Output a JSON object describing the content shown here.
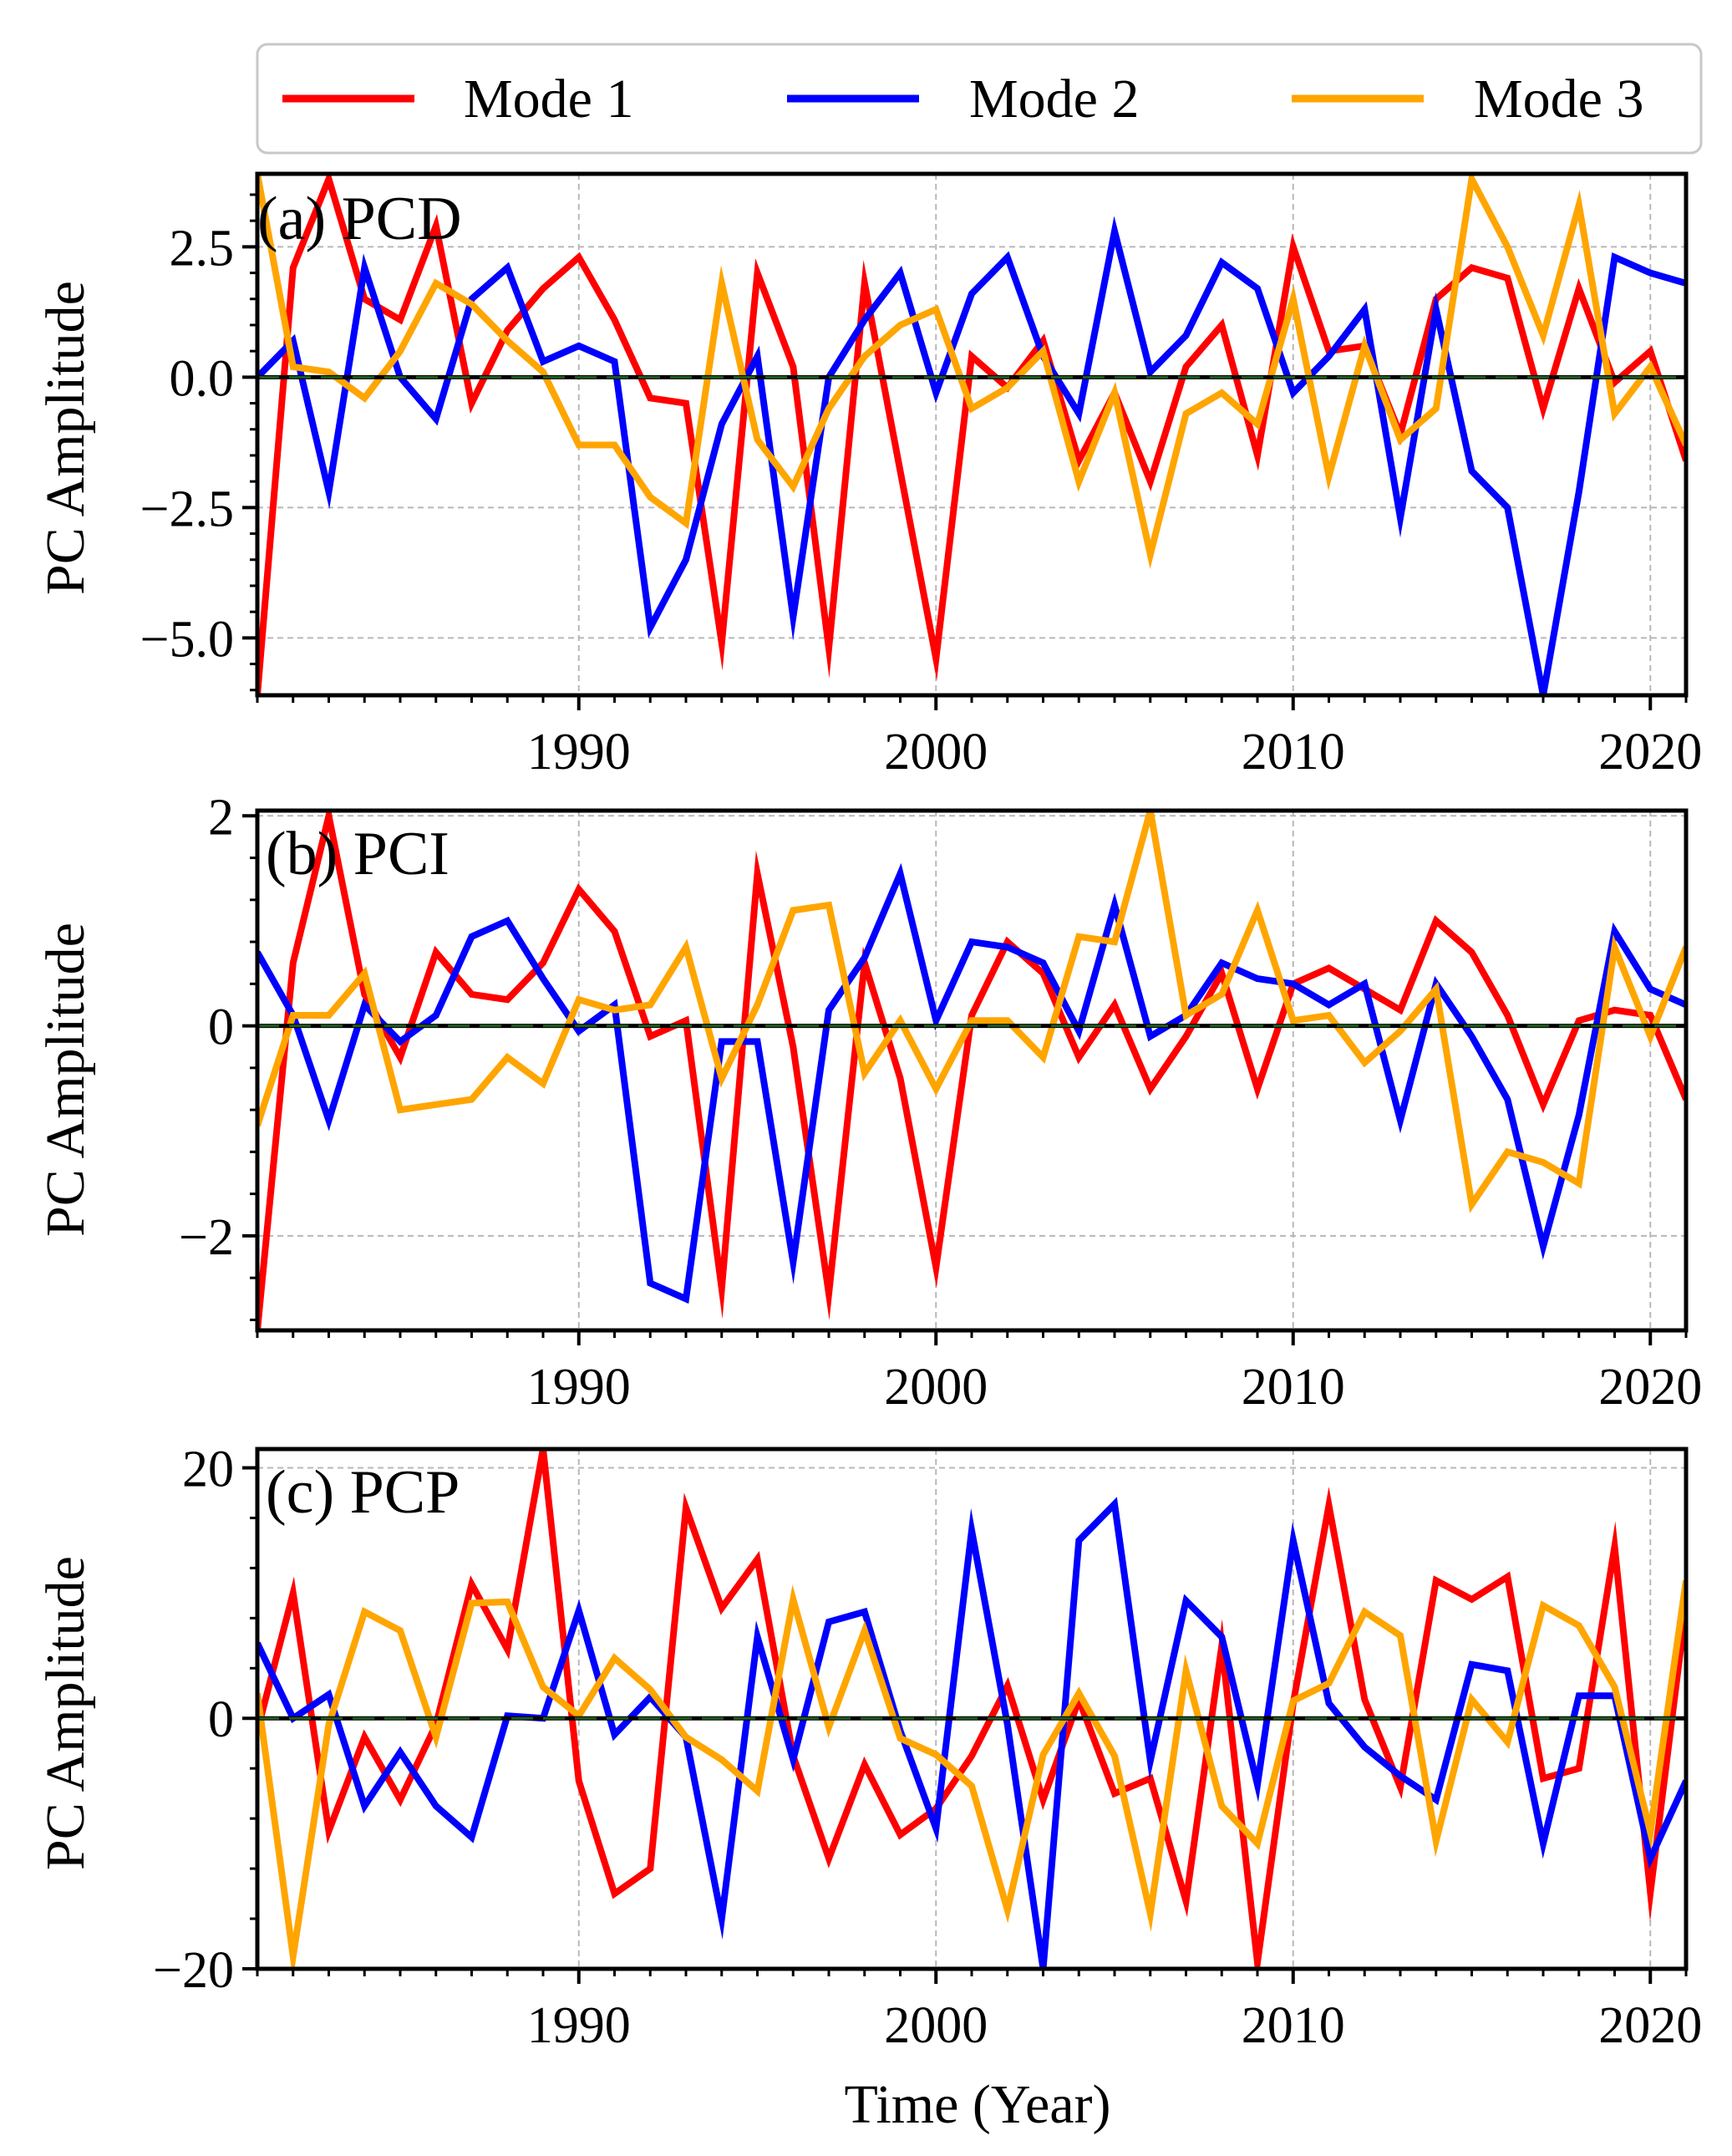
{
  "legend": [
    {
      "name": "Mode 1",
      "color": "#ff0000"
    },
    {
      "name": "Mode 2",
      "color": "#0000ff"
    },
    {
      "name": "Mode 3",
      "color": "#ffa500"
    }
  ],
  "zero_line_color": "#1f5a1f",
  "xlabel": "Time (Year)",
  "ylabel": "PC Amplitude",
  "chart_data": [
    {
      "type": "line",
      "title": "(a) PCD",
      "xlabel": "",
      "ylabel": "PC Amplitude",
      "xlim": [
        1981,
        2021
      ],
      "ylim": [
        -6.1,
        3.9
      ],
      "xticks": [
        1990,
        2000,
        2010,
        2020
      ],
      "yticks": [
        -5.0,
        -2.5,
        0.0,
        2.5
      ],
      "ytick_labels": [
        "−5.0",
        "−2.5",
        "0.0",
        "2.5"
      ],
      "grid": true,
      "legend": "top",
      "x": [
        1981,
        1982,
        1983,
        1984,
        1985,
        1986,
        1987,
        1988,
        1989,
        1990,
        1991,
        1992,
        1993,
        1994,
        1995,
        1996,
        1997,
        1998,
        1999,
        2000,
        2001,
        2002,
        2003,
        2004,
        2005,
        2006,
        2007,
        2008,
        2009,
        2010,
        2011,
        2012,
        2013,
        2014,
        2015,
        2016,
        2017,
        2018,
        2019,
        2020,
        2021
      ],
      "series": [
        {
          "name": "Mode 1",
          "values": [
            -6.1,
            2.1,
            3.8,
            1.5,
            1.1,
            2.9,
            -0.5,
            0.9,
            1.7,
            2.3,
            1.1,
            -0.4,
            -0.5,
            -5.1,
            2.0,
            0.2,
            -5.2,
            1.8,
            -1.8,
            -5.4,
            0.4,
            -0.2,
            0.7,
            -1.6,
            -0.3,
            -2.0,
            0.2,
            1.0,
            -1.5,
            2.5,
            0.5,
            0.6,
            -1.1,
            1.5,
            2.1,
            1.9,
            -0.6,
            1.7,
            -0.1,
            0.5,
            -1.6
          ]
        },
        {
          "name": "Mode 2",
          "values": [
            0.0,
            0.7,
            -2.2,
            2.1,
            0.0,
            -0.8,
            1.5,
            2.1,
            0.3,
            0.6,
            0.3,
            -4.8,
            -3.5,
            -0.9,
            0.4,
            -4.6,
            0.0,
            1.1,
            2.0,
            -0.3,
            1.6,
            2.3,
            0.4,
            -0.7,
            2.8,
            0.1,
            0.8,
            2.2,
            1.7,
            -0.3,
            0.4,
            1.3,
            -2.7,
            1.3,
            -1.8,
            -2.5,
            -6.1,
            -2.2,
            2.3,
            2.0,
            1.8
          ]
        },
        {
          "name": "Mode 3",
          "values": [
            3.9,
            0.2,
            0.1,
            -0.4,
            0.5,
            1.8,
            1.4,
            0.7,
            0.1,
            -1.3,
            -1.3,
            -2.3,
            -2.8,
            1.8,
            -1.2,
            -2.1,
            -0.6,
            0.4,
            1.0,
            1.3,
            -0.6,
            -0.2,
            0.5,
            -2.0,
            -0.3,
            -3.4,
            -0.7,
            -0.3,
            -0.9,
            1.5,
            -1.9,
            0.6,
            -1.2,
            -0.6,
            3.8,
            2.5,
            0.8,
            3.3,
            -0.7,
            0.2,
            -1.3
          ]
        }
      ]
    },
    {
      "type": "line",
      "title": "(b) PCI",
      "xlabel": "",
      "ylabel": "PC Amplitude",
      "xlim": [
        1981,
        2021
      ],
      "ylim": [
        -2.9,
        2.05
      ],
      "xticks": [
        1990,
        2000,
        2010,
        2020
      ],
      "yticks": [
        -2,
        0,
        2
      ],
      "ytick_labels": [
        "−2",
        "0",
        "2"
      ],
      "grid": true,
      "x": [
        1981,
        1982,
        1983,
        1984,
        1985,
        1986,
        1987,
        1988,
        1989,
        1990,
        1991,
        1992,
        1993,
        1994,
        1995,
        1996,
        1997,
        1998,
        1999,
        2000,
        2001,
        2002,
        2003,
        2004,
        2005,
        2006,
        2007,
        2008,
        2009,
        2010,
        2011,
        2012,
        2013,
        2014,
        2015,
        2016,
        2017,
        2018,
        2019,
        2020,
        2021
      ],
      "series": [
        {
          "name": "Mode 1",
          "values": [
            -2.9,
            0.6,
            2.0,
            0.3,
            -0.3,
            0.7,
            0.3,
            0.25,
            0.6,
            1.3,
            0.9,
            -0.1,
            0.05,
            -2.5,
            1.45,
            -0.2,
            -2.55,
            0.6,
            -0.5,
            -2.3,
            0.1,
            0.8,
            0.5,
            -0.3,
            0.2,
            -0.6,
            -0.1,
            0.5,
            -0.6,
            0.4,
            0.55,
            0.35,
            0.15,
            1.0,
            0.7,
            0.1,
            -0.75,
            0.05,
            0.15,
            0.1,
            -0.7
          ]
        },
        {
          "name": "Mode 2",
          "values": [
            0.7,
            0.1,
            -0.9,
            0.2,
            -0.15,
            0.1,
            0.85,
            1.0,
            0.45,
            -0.05,
            0.2,
            -2.45,
            -2.6,
            -0.15,
            -0.15,
            -2.25,
            0.15,
            0.65,
            1.45,
            0.05,
            0.8,
            0.75,
            0.6,
            -0.05,
            1.15,
            -0.1,
            0.1,
            0.6,
            0.45,
            0.4,
            0.2,
            0.4,
            -0.9,
            0.4,
            -0.1,
            -0.7,
            -2.1,
            -0.85,
            0.9,
            0.35,
            0.2
          ]
        },
        {
          "name": "Mode 3",
          "values": [
            -0.95,
            0.1,
            0.1,
            0.5,
            -0.8,
            -0.75,
            -0.7,
            -0.3,
            -0.55,
            0.25,
            0.15,
            0.2,
            0.75,
            -0.5,
            0.2,
            1.1,
            1.15,
            -0.45,
            0.05,
            -0.6,
            0.05,
            0.05,
            -0.3,
            0.85,
            0.8,
            2.05,
            0.1,
            0.3,
            1.1,
            0.05,
            0.1,
            -0.35,
            -0.05,
            0.35,
            -1.7,
            -1.2,
            -1.3,
            -1.5,
            0.75,
            -0.1,
            0.75
          ]
        }
      ]
    },
    {
      "type": "line",
      "title": "(c) PCP",
      "xlabel": "Time (Year)",
      "ylabel": "PC Amplitude",
      "xlim": [
        1981,
        2021
      ],
      "ylim": [
        -20,
        21.5
      ],
      "xticks": [
        1990,
        2000,
        2010,
        2020
      ],
      "yticks": [
        -20,
        0,
        20
      ],
      "ytick_labels": [
        "−20",
        "0",
        "20"
      ],
      "grid": true,
      "x": [
        1981,
        1982,
        1983,
        1984,
        1985,
        1986,
        1987,
        1988,
        1989,
        1990,
        1991,
        1992,
        1993,
        1994,
        1995,
        1996,
        1997,
        1998,
        1999,
        2000,
        2001,
        2002,
        2003,
        2004,
        2005,
        2006,
        2007,
        2008,
        2009,
        2010,
        2011,
        2012,
        2013,
        2014,
        2015,
        2016,
        2017,
        2018,
        2019,
        2020,
        2021
      ],
      "series": [
        {
          "name": "Mode 1",
          "values": [
            -1,
            10,
            -9,
            -1.5,
            -6.5,
            -0.5,
            10.7,
            5.5,
            21.5,
            -5,
            -14,
            -12,
            16.8,
            8.8,
            12.7,
            -3,
            -11.2,
            -3.7,
            -9.3,
            -7.2,
            -3,
            2.6,
            -6.5,
            1.5,
            -6,
            -4.8,
            -14.6,
            5.8,
            -19.5,
            1.2,
            17,
            1.5,
            -5.5,
            11,
            9.5,
            11.3,
            -4.8,
            -4,
            13.7,
            -13.9,
            9
          ]
        },
        {
          "name": "Mode 2",
          "values": [
            6,
            0,
            1.9,
            -7,
            -2.7,
            -7,
            -9.5,
            0.2,
            0,
            8.6,
            -1.3,
            1.7,
            -1.5,
            -16,
            6.5,
            -3.3,
            7.7,
            8.5,
            -1,
            -8.8,
            15,
            -0.5,
            -20,
            14.2,
            17.1,
            -3.4,
            9.4,
            6.5,
            -5.3,
            14.2,
            1.2,
            -2.3,
            -4.6,
            -6.5,
            4.3,
            3.8,
            -10,
            1.8,
            1.8,
            -11.2,
            -5
          ]
        },
        {
          "name": "Mode 3",
          "values": [
            2,
            -19,
            -0.5,
            8.5,
            7,
            -1.5,
            9.2,
            9.3,
            2.5,
            0.2,
            4.8,
            2.3,
            -1.5,
            -3.3,
            -5.8,
            9.5,
            -0.7,
            7,
            -1.6,
            -2.9,
            -5.4,
            -15.3,
            -2.9,
            2,
            -3,
            -15.6,
            3.8,
            -7,
            -10,
            1.4,
            2.8,
            8.5,
            6.6,
            -9.8,
            1.5,
            -1.9,
            9,
            7.4,
            2.5,
            -9.1,
            11
          ]
        }
      ]
    }
  ]
}
